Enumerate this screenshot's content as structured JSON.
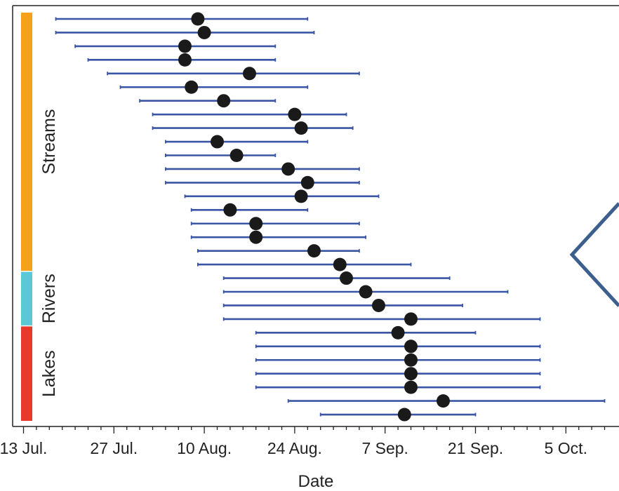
{
  "chart_data": {
    "type": "scatter",
    "xlabel": "Date",
    "x_tick_labels": [
      "13 Jul.",
      "27 Jul.",
      "10 Aug.",
      "24 Aug.",
      "7 Sep.",
      "21 Sep.",
      "5 Oct."
    ],
    "x_tick_dates": [
      "2000-07-13",
      "2000-07-27",
      "2000-08-10",
      "2000-08-24",
      "2000-09-07",
      "2000-09-21",
      "2000-10-05"
    ],
    "xlim": [
      "2000-07-12",
      "2000-10-11"
    ],
    "groups": [
      {
        "name": "Streams",
        "color": "#f5a21b",
        "rows": [
          0,
          18
        ]
      },
      {
        "name": "Rivers",
        "color": "#5bc8d8",
        "rows": [
          19,
          22
        ]
      },
      {
        "name": "Lakes",
        "color": "#e8392e",
        "rows": [
          23,
          29
        ]
      }
    ],
    "colors": {
      "interval": "#3a55a4",
      "point": "#1a1a1a",
      "axis": "#222222"
    },
    "series": [
      {
        "mean": "2000-08-09",
        "start": "2000-07-18",
        "end": "2000-08-26"
      },
      {
        "mean": "2000-08-10",
        "start": "2000-07-18",
        "end": "2000-08-27"
      },
      {
        "mean": "2000-08-07",
        "start": "2000-07-21",
        "end": "2000-08-21"
      },
      {
        "mean": "2000-08-07",
        "start": "2000-07-23",
        "end": "2000-08-21"
      },
      {
        "mean": "2000-08-17",
        "start": "2000-07-26",
        "end": "2000-09-03"
      },
      {
        "mean": "2000-08-08",
        "start": "2000-07-28",
        "end": "2000-08-26"
      },
      {
        "mean": "2000-08-13",
        "start": "2000-07-31",
        "end": "2000-08-21"
      },
      {
        "mean": "2000-08-24",
        "start": "2000-08-02",
        "end": "2000-09-01"
      },
      {
        "mean": "2000-08-25",
        "start": "2000-08-02",
        "end": "2000-09-02"
      },
      {
        "mean": "2000-08-12",
        "start": "2000-08-04",
        "end": "2000-08-26"
      },
      {
        "mean": "2000-08-15",
        "start": "2000-08-04",
        "end": "2000-08-21"
      },
      {
        "mean": "2000-08-23",
        "start": "2000-08-04",
        "end": "2000-09-03"
      },
      {
        "mean": "2000-08-26",
        "start": "2000-08-04",
        "end": "2000-09-03"
      },
      {
        "mean": "2000-08-25",
        "start": "2000-08-07",
        "end": "2000-09-06"
      },
      {
        "mean": "2000-08-14",
        "start": "2000-08-08",
        "end": "2000-08-26"
      },
      {
        "mean": "2000-08-18",
        "start": "2000-08-08",
        "end": "2000-09-03"
      },
      {
        "mean": "2000-08-18",
        "start": "2000-08-08",
        "end": "2000-09-04"
      },
      {
        "mean": "2000-08-27",
        "start": "2000-08-09",
        "end": "2000-09-03"
      },
      {
        "mean": "2000-08-31",
        "start": "2000-08-09",
        "end": "2000-09-11"
      },
      {
        "mean": "2000-09-01",
        "start": "2000-08-13",
        "end": "2000-09-17"
      },
      {
        "mean": "2000-09-04",
        "start": "2000-08-13",
        "end": "2000-09-26"
      },
      {
        "mean": "2000-09-06",
        "start": "2000-08-13",
        "end": "2000-09-19"
      },
      {
        "mean": "2000-09-11",
        "start": "2000-08-13",
        "end": "2000-10-01"
      },
      {
        "mean": "2000-09-09",
        "start": "2000-08-18",
        "end": "2000-09-21"
      },
      {
        "mean": "2000-09-11",
        "start": "2000-08-18",
        "end": "2000-10-01"
      },
      {
        "mean": "2000-09-11",
        "start": "2000-08-18",
        "end": "2000-10-01"
      },
      {
        "mean": "2000-09-11",
        "start": "2000-08-18",
        "end": "2000-10-01"
      },
      {
        "mean": "2000-09-11",
        "start": "2000-08-18",
        "end": "2000-10-01"
      },
      {
        "mean": "2000-09-16",
        "start": "2000-08-23",
        "end": "2000-10-11"
      },
      {
        "mean": "2000-09-10",
        "start": "2000-08-28",
        "end": "2000-09-21"
      }
    ]
  }
}
